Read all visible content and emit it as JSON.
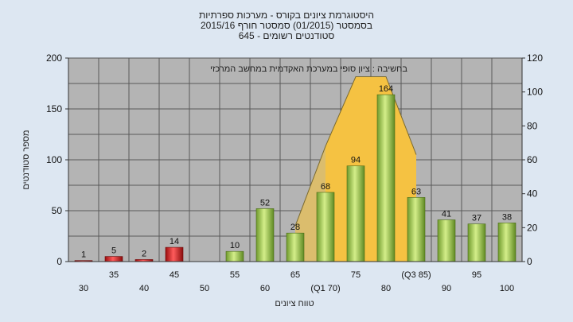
{
  "titles": {
    "line1": "היסטוגרמת ציונים בקורס - מערכות ספרתיות",
    "line2": "בסמסטר  (01/2015)  סמסטר חורף 2015/16",
    "line3": "סטודנטים רשומים - 645"
  },
  "chart_data": {
    "type": "bar",
    "title": "היסטוגרמת ציונים בקורס - מערכות ספרתיות",
    "annotation": "בחשיבה : ציון סופי במערכת האקדמית במחשב המרכזי",
    "xlabel": "טווח ציונים",
    "ylabel": "מספר סטודנטים",
    "ylim": [
      0,
      200
    ],
    "y_ticks": [
      0,
      50,
      100,
      150,
      200
    ],
    "y2lim": [
      0,
      120
    ],
    "y2_ticks": [
      0,
      20,
      40,
      60,
      80,
      100,
      120
    ],
    "grid": true,
    "categories": [
      "30",
      "35",
      "40",
      "45",
      "50",
      "55",
      "60",
      "65",
      "70",
      "75",
      "80",
      "85",
      "90",
      "95",
      "100"
    ],
    "category_labels": [
      "30",
      "35",
      "40",
      "45",
      "50",
      "55",
      "60",
      "65",
      "(Q1 70)",
      "75",
      "80",
      "(Q3 85)",
      "90",
      "95",
      "100"
    ],
    "values": [
      1,
      5,
      2,
      14,
      0,
      10,
      52,
      28,
      68,
      94,
      164,
      63,
      41,
      37,
      38
    ],
    "value_labels": [
      "1",
      "5",
      "2",
      "14",
      "",
      "10",
      "52",
      "28",
      "68",
      "94",
      "164",
      "63",
      "41",
      "37",
      "38"
    ],
    "bar_colors": [
      "red",
      "red",
      "red",
      "red",
      "red",
      "green",
      "green",
      "green",
      "green",
      "green",
      "green",
      "green",
      "green",
      "green",
      "green"
    ],
    "background_area": {
      "x": [
        "65",
        "70",
        "75",
        "80",
        "85"
      ],
      "y2": [
        21,
        68,
        109,
        109,
        63
      ]
    },
    "colors": {
      "plot_bg": "#b4b4b4",
      "area_main": "#f5c242",
      "area_light": "#f8e0a0",
      "bar_green": "#9ccc4a",
      "bar_red": "#e02020",
      "page_bg": "#dde7f2"
    }
  }
}
